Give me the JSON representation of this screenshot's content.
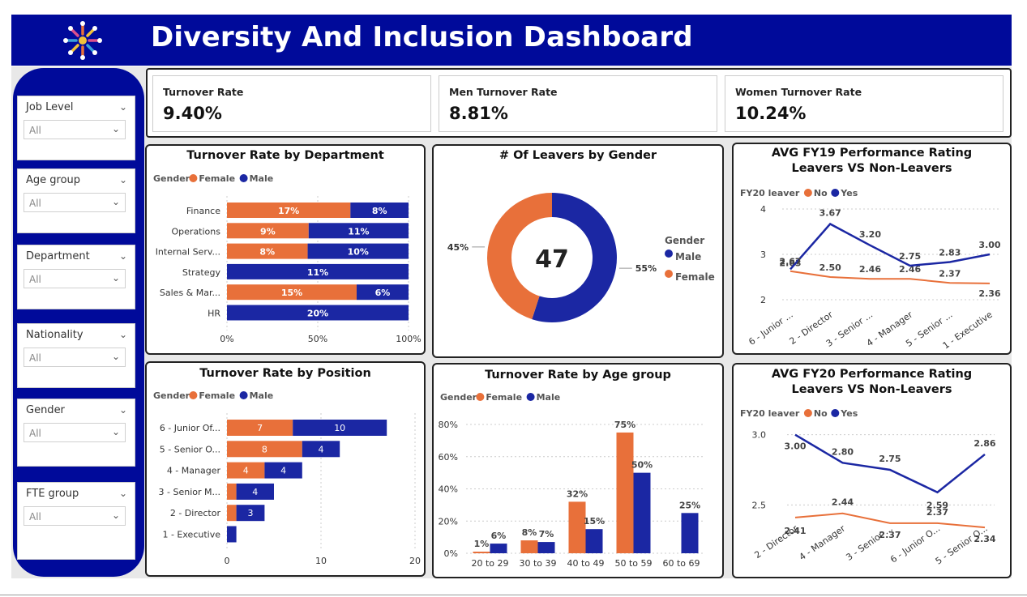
{
  "header": {
    "title": "Diversity And Inclusion Dashboard",
    "logo_icon": "diversity-flower-icon"
  },
  "colors": {
    "navy": "#000a9a",
    "female": "#e8703a",
    "male": "#1b27a3",
    "no": "#e8703a",
    "yes": "#1b27a3"
  },
  "slicers": [
    {
      "label": "Job Level",
      "value": "All"
    },
    {
      "label": "Age group",
      "value": "All"
    },
    {
      "label": "Department",
      "value": "All"
    },
    {
      "label": "Nationality",
      "value": "All"
    },
    {
      "label": "Gender",
      "value": "All"
    },
    {
      "label": "FTE group",
      "value": "All"
    }
  ],
  "kpis": [
    {
      "label": "Turnover Rate",
      "value": "9.40%"
    },
    {
      "label": "Men Turnover Rate",
      "value": "8.81%"
    },
    {
      "label": "Women Turnover Rate",
      "value": "10.24%"
    }
  ],
  "chart_data": [
    {
      "id": "dept",
      "type": "bar",
      "orientation": "horizontal",
      "stacked": "100%",
      "title": "Turnover Rate by Department",
      "legend_title": "Gender",
      "legend_position": "top-left",
      "categories": [
        "Finance",
        "Operations",
        "Internal Serv...",
        "Strategy",
        "Sales & Mar...",
        "HR"
      ],
      "series": [
        {
          "name": "Female",
          "values": [
            17,
            9,
            8,
            0,
            15,
            0
          ],
          "labels": [
            "17%",
            "9%",
            "8%",
            "",
            "15%",
            ""
          ]
        },
        {
          "name": "Male",
          "values": [
            8,
            11,
            10,
            11,
            6,
            20
          ],
          "labels": [
            "8%",
            "11%",
            "10%",
            "11%",
            "6%",
            "20%"
          ]
        }
      ],
      "xlim": [
        0,
        100
      ],
      "xticks": [
        "0%",
        "50%",
        "100%"
      ]
    },
    {
      "id": "donut",
      "type": "pie",
      "donut": true,
      "title": "# Of Leavers by Gender",
      "center_label": "47",
      "legend_title": "Gender",
      "legend_position": "right",
      "slices": [
        {
          "name": "Male",
          "value": 55,
          "label": "55%"
        },
        {
          "name": "Female",
          "value": 45,
          "label": "45%"
        }
      ]
    },
    {
      "id": "fy19",
      "type": "line",
      "title": "AVG FY19 Performance Rating Leavers VS Non-Leavers",
      "legend_title": "FY20 leaver",
      "legend_position": "top-left",
      "categories": [
        "6 - Junior ...",
        "2 - Director",
        "3 - Senior ...",
        "4 - Manager",
        "5 - Senior ...",
        "1 - Executive"
      ],
      "series": [
        {
          "name": "No",
          "values": [
            2.63,
            2.5,
            2.46,
            2.46,
            2.37,
            2.36
          ],
          "labels": [
            "2.63",
            "2.50",
            "2.46",
            "2.46",
            "2.37",
            "2.36"
          ]
        },
        {
          "name": "Yes",
          "values": [
            2.67,
            3.67,
            3.2,
            2.75,
            2.83,
            3.0
          ],
          "labels": [
            "2.67",
            "3.67",
            "3.20",
            "2.75",
            "2.83",
            "3.00"
          ]
        }
      ],
      "ylim": [
        2,
        4
      ],
      "yticks": [
        "2",
        "3",
        "4"
      ]
    },
    {
      "id": "pos",
      "type": "bar",
      "orientation": "horizontal",
      "stacked": true,
      "title": "Turnover Rate by Position",
      "legend_title": "Gender",
      "legend_position": "top-left",
      "categories": [
        "6 - Junior Of...",
        "5 - Senior O...",
        "4 - Manager",
        "3 - Senior M...",
        "2 - Director",
        "1 - Executive"
      ],
      "series": [
        {
          "name": "Female",
          "values": [
            7,
            8,
            4,
            1,
            1,
            0
          ],
          "labels": [
            "7",
            "8",
            "4",
            "",
            "",
            ""
          ]
        },
        {
          "name": "Male",
          "values": [
            10,
            4,
            4,
            4,
            3,
            1
          ],
          "labels": [
            "10",
            "4",
            "4",
            "4",
            "3",
            ""
          ]
        }
      ],
      "xlim": [
        0,
        20
      ],
      "xticks": [
        "0",
        "10",
        "20"
      ]
    },
    {
      "id": "age",
      "type": "bar",
      "orientation": "vertical",
      "title": "Turnover Rate by Age group",
      "legend_title": "Gender",
      "legend_position": "top-left",
      "categories": [
        "20 to 29",
        "30 to 39",
        "40 to 49",
        "50 to 59",
        "60 to 69"
      ],
      "series": [
        {
          "name": "Female",
          "values": [
            1,
            8,
            32,
            75,
            0
          ],
          "labels": [
            "1%",
            "8%",
            "32%",
            "75%",
            ""
          ]
        },
        {
          "name": "Male",
          "values": [
            6,
            7,
            15,
            50,
            25
          ],
          "labels": [
            "6%",
            "7%",
            "15%",
            "50%",
            "25%"
          ]
        }
      ],
      "ylim": [
        0,
        80
      ],
      "yticks": [
        "0%",
        "20%",
        "40%",
        "60%",
        "80%"
      ]
    },
    {
      "id": "fy20",
      "type": "line",
      "title": "AVG FY20 Performance Rating Leavers VS Non-Leavers",
      "legend_title": "FY20 leaver",
      "legend_position": "top-left",
      "categories": [
        "2 - Director",
        "4 - Manager",
        "3 - Senior ...",
        "6 - Junior O...",
        "5 - Senior O..."
      ],
      "series": [
        {
          "name": "No",
          "values": [
            2.41,
            2.44,
            2.37,
            2.37,
            2.34
          ],
          "labels": [
            "2.41",
            "2.44",
            "2.37",
            "2.37",
            "2.34"
          ]
        },
        {
          "name": "Yes",
          "values": [
            3.0,
            2.8,
            2.75,
            2.59,
            2.86
          ],
          "labels": [
            "3.00",
            "2.80",
            "2.75",
            "2.59",
            "2.86"
          ]
        }
      ],
      "ylim": [
        2.3,
        3.05
      ],
      "yticks": [
        "2.5",
        "3.0"
      ]
    }
  ]
}
